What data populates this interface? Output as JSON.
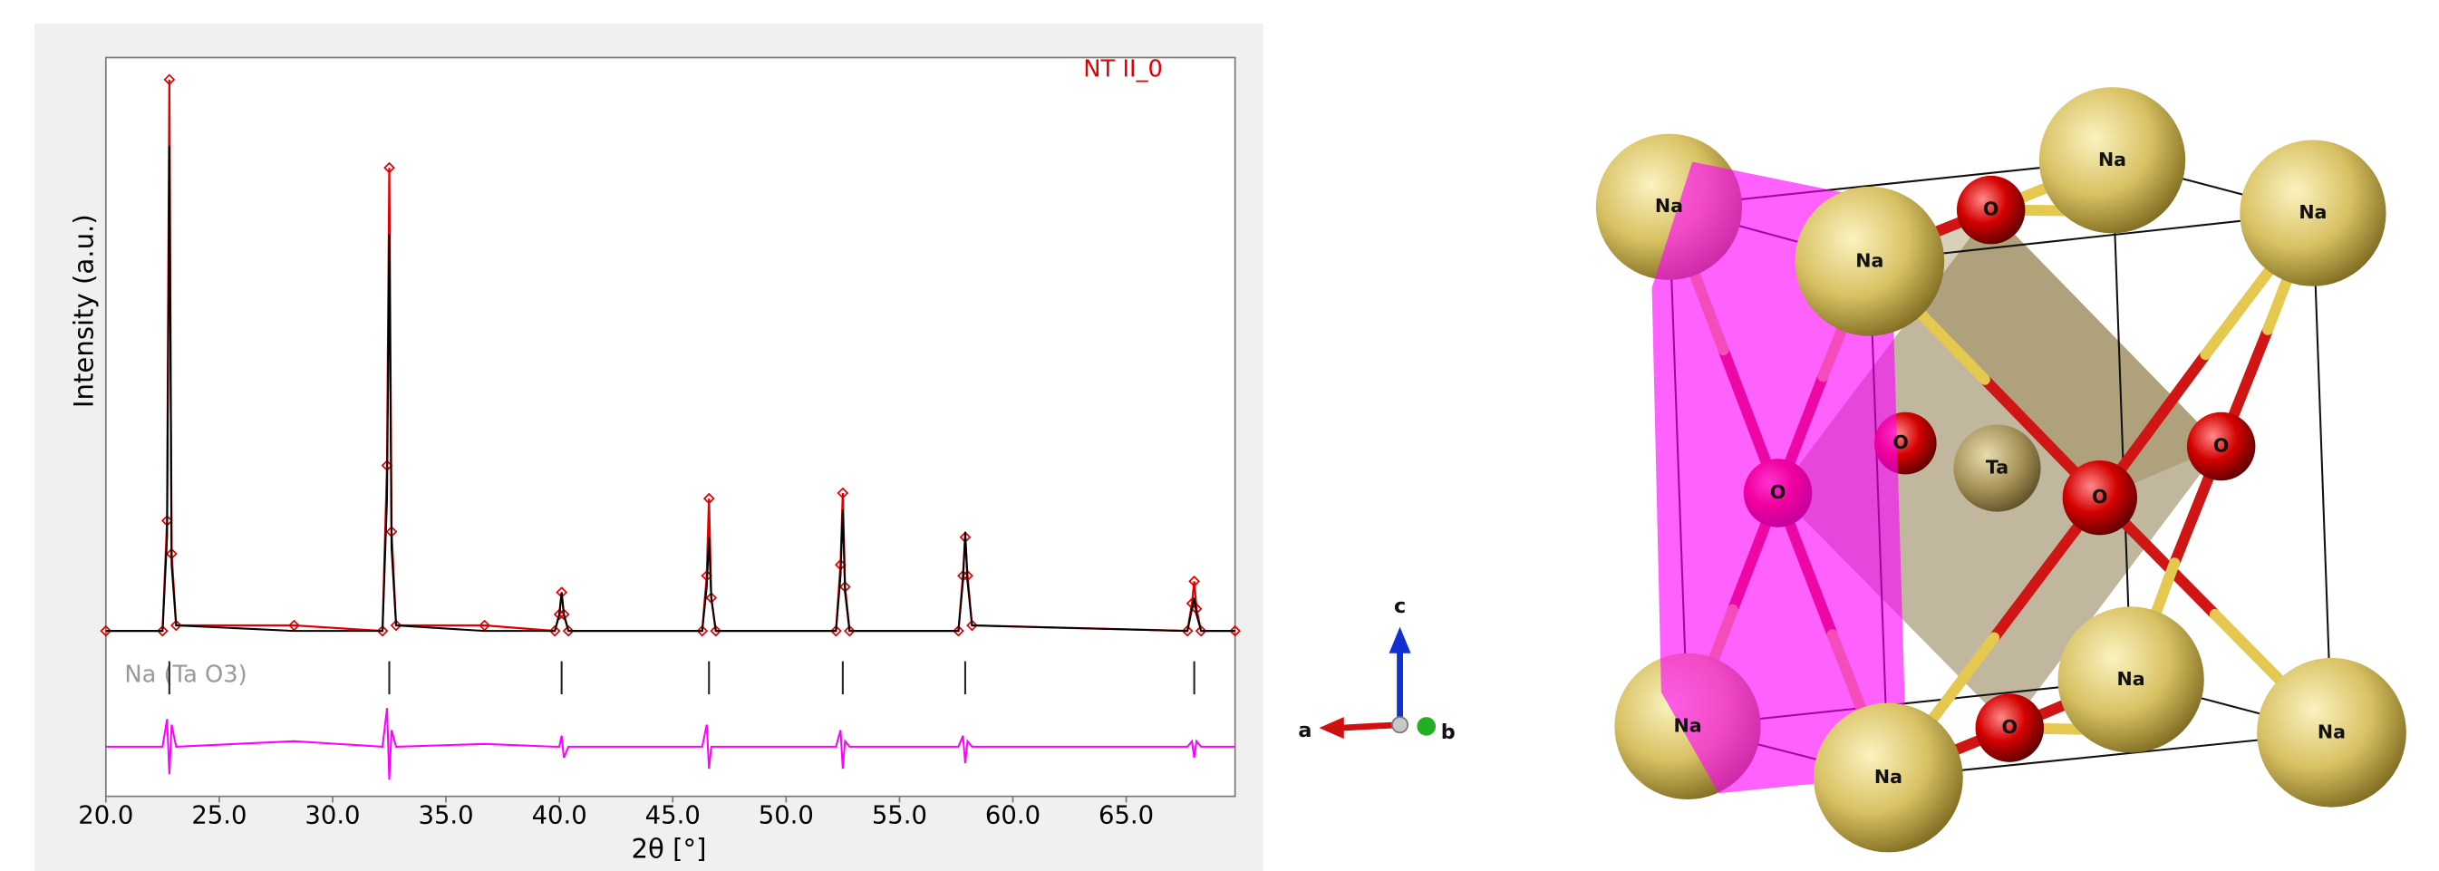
{
  "chart_data": {
    "type": "line",
    "xlabel": "2θ [°]",
    "ylabel": "Intensity (a.u.)",
    "x": [
      20,
      22.5,
      22.7,
      22.8,
      22.9,
      23.1,
      28.3,
      32.2,
      32.4,
      32.5,
      32.6,
      32.8,
      36.7,
      39.8,
      40.0,
      40.1,
      40.2,
      40.4,
      46.3,
      46.5,
      46.6,
      46.7,
      46.9,
      52.2,
      52.4,
      52.5,
      52.6,
      52.8,
      57.6,
      57.8,
      57.9,
      58.0,
      58.2,
      67.7,
      67.9,
      68.0,
      68.1,
      68.3,
      69.8
    ],
    "series": [
      {
        "name": "NT II_0",
        "color": "#e00000",
        "markers": true,
        "values": [
          0,
          0,
          20,
          100,
          14,
          1,
          1,
          0,
          30,
          84,
          18,
          1,
          1,
          0,
          3,
          7,
          3,
          0,
          0,
          10,
          24,
          6,
          0,
          0,
          12,
          25,
          8,
          0,
          0,
          10,
          17,
          10,
          1,
          0,
          5,
          9,
          4,
          0,
          0
        ]
      },
      {
        "color": "#000000",
        "markers": false,
        "values": [
          0,
          0,
          17,
          88,
          12,
          1,
          0,
          0,
          24,
          72,
          15,
          1,
          0,
          0,
          3,
          7,
          3,
          0,
          0,
          8,
          17,
          6,
          0,
          0,
          10,
          22,
          7,
          0,
          0,
          9,
          18,
          9,
          1,
          0,
          4,
          6,
          3,
          0,
          0
        ]
      },
      {
        "color": "#ff00ff",
        "markers": false,
        "values": [
          -21,
          -21,
          -16,
          -26,
          -17,
          -21,
          -20,
          -21,
          -14,
          -27,
          -18,
          -21,
          -20.5,
          -21,
          -21,
          -19,
          -23,
          -21,
          -21,
          -17,
          -25,
          -21,
          -21,
          -21,
          -18,
          -25,
          -20,
          -21,
          -21,
          -19,
          -24,
          -20,
          -21,
          -21,
          -20,
          -23,
          -20,
          -21,
          -21
        ]
      }
    ],
    "reflections": {
      "name": "Na (Ta O3)",
      "color": "#222222",
      "positions": [
        22.8,
        32.5,
        40.1,
        46.6,
        52.5,
        57.9,
        68.0
      ]
    },
    "xlim": [
      20,
      69.8
    ],
    "ylim": [
      -30,
      104
    ],
    "xticks": [
      {
        "value": 20,
        "label": "20.0"
      },
      {
        "value": 25,
        "label": "25.0"
      },
      {
        "value": 30,
        "label": "30.0"
      },
      {
        "value": 35,
        "label": "35.0"
      },
      {
        "value": 40,
        "label": "40.0"
      },
      {
        "value": 45,
        "label": "45.0"
      },
      {
        "value": 50,
        "label": "50.0"
      },
      {
        "value": 55,
        "label": "55.0"
      },
      {
        "value": 60,
        "label": "60.0"
      },
      {
        "value": 65,
        "label": "65.0"
      }
    ],
    "grid": false
  },
  "structure": {
    "atoms": [
      {
        "label": "Na"
      },
      {
        "label": "Na"
      },
      {
        "label": "Na"
      },
      {
        "label": "Na"
      },
      {
        "label": "Na"
      },
      {
        "label": "Na"
      },
      {
        "label": "Na"
      },
      {
        "label": "Na"
      },
      {
        "label": "O"
      },
      {
        "label": "O"
      },
      {
        "label": "O"
      },
      {
        "label": "O"
      },
      {
        "label": "O"
      },
      {
        "label": "O"
      },
      {
        "label": "Ta"
      }
    ],
    "axes": [
      "a",
      "b",
      "c"
    ]
  }
}
